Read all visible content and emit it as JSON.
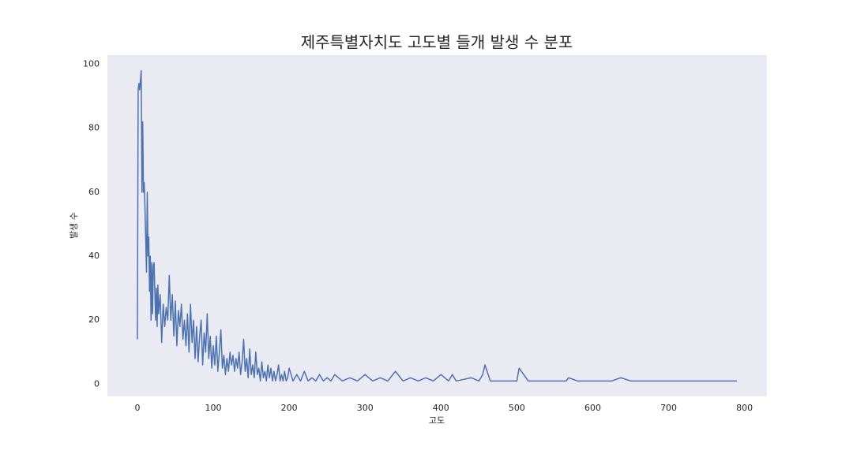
{
  "chart_data": {
    "type": "line",
    "title": "제주특별자치도 고도별 들개 발생 수 분포",
    "xlabel": "고도",
    "ylabel": "발생 수",
    "color": "#4c72b0",
    "grid": false,
    "x": [
      0,
      1,
      2,
      3,
      5,
      6,
      7,
      8,
      9,
      10,
      12,
      13,
      14,
      15,
      16,
      17,
      18,
      19,
      20,
      21,
      22,
      24,
      25,
      26,
      27,
      28,
      30,
      32,
      34,
      36,
      38,
      40,
      42,
      44,
      46,
      48,
      50,
      52,
      54,
      56,
      58,
      60,
      62,
      64,
      66,
      68,
      70,
      72,
      74,
      76,
      78,
      80,
      82,
      84,
      86,
      88,
      90,
      92,
      94,
      96,
      98,
      100,
      102,
      104,
      106,
      108,
      110,
      112,
      114,
      116,
      118,
      120,
      122,
      124,
      126,
      128,
      130,
      132,
      134,
      136,
      138,
      140,
      142,
      144,
      146,
      148,
      150,
      152,
      154,
      156,
      158,
      160,
      162,
      164,
      166,
      168,
      170,
      172,
      174,
      176,
      178,
      180,
      182,
      184,
      186,
      188,
      190,
      192,
      194,
      196,
      198,
      200,
      205,
      210,
      215,
      220,
      225,
      230,
      235,
      240,
      245,
      250,
      255,
      260,
      270,
      280,
      290,
      300,
      310,
      320,
      330,
      340,
      350,
      360,
      370,
      380,
      390,
      400,
      410,
      415,
      420,
      440,
      450,
      455,
      458,
      465,
      500,
      503,
      515,
      565,
      568,
      580,
      625,
      637,
      650,
      790
    ],
    "values": [
      14,
      92,
      94,
      92,
      98,
      60,
      82,
      60,
      63,
      55,
      35,
      60,
      40,
      46,
      29,
      40,
      20,
      38,
      22,
      37,
      38,
      20,
      30,
      18,
      31,
      22,
      28,
      13,
      25,
      18,
      24,
      20,
      34,
      20,
      28,
      15,
      26,
      12,
      23,
      18,
      25,
      14,
      20,
      12,
      22,
      10,
      25,
      13,
      20,
      8,
      18,
      7,
      15,
      20,
      6,
      16,
      10,
      22,
      8,
      15,
      5,
      12,
      6,
      15,
      4,
      10,
      17,
      5,
      9,
      3,
      8,
      4,
      10,
      6,
      9,
      4,
      8,
      5,
      10,
      3,
      7,
      14,
      4,
      8,
      2,
      11,
      3,
      6,
      2,
      10,
      3,
      5,
      1,
      7,
      2,
      4,
      1,
      6,
      2,
      5,
      1,
      4,
      1,
      3,
      6,
      1,
      3,
      1,
      4,
      1,
      2,
      5,
      1,
      3,
      1,
      4,
      1,
      2,
      1,
      3,
      1,
      2,
      1,
      3,
      1,
      2,
      1,
      3,
      1,
      2,
      1,
      4,
      1,
      2,
      1,
      2,
      1,
      3,
      1,
      3,
      1,
      2,
      1,
      3,
      6,
      1,
      1,
      5,
      1,
      1,
      2,
      1,
      1,
      2,
      1,
      1
    ],
    "xlim": [
      -39.5,
      829.5
    ],
    "xticks": [
      0,
      100,
      200,
      300,
      400,
      500,
      600,
      700,
      800
    ],
    "ylim": [
      -3.85,
      102.85
    ],
    "yticks": [
      0,
      20,
      40,
      60,
      80,
      100
    ]
  }
}
